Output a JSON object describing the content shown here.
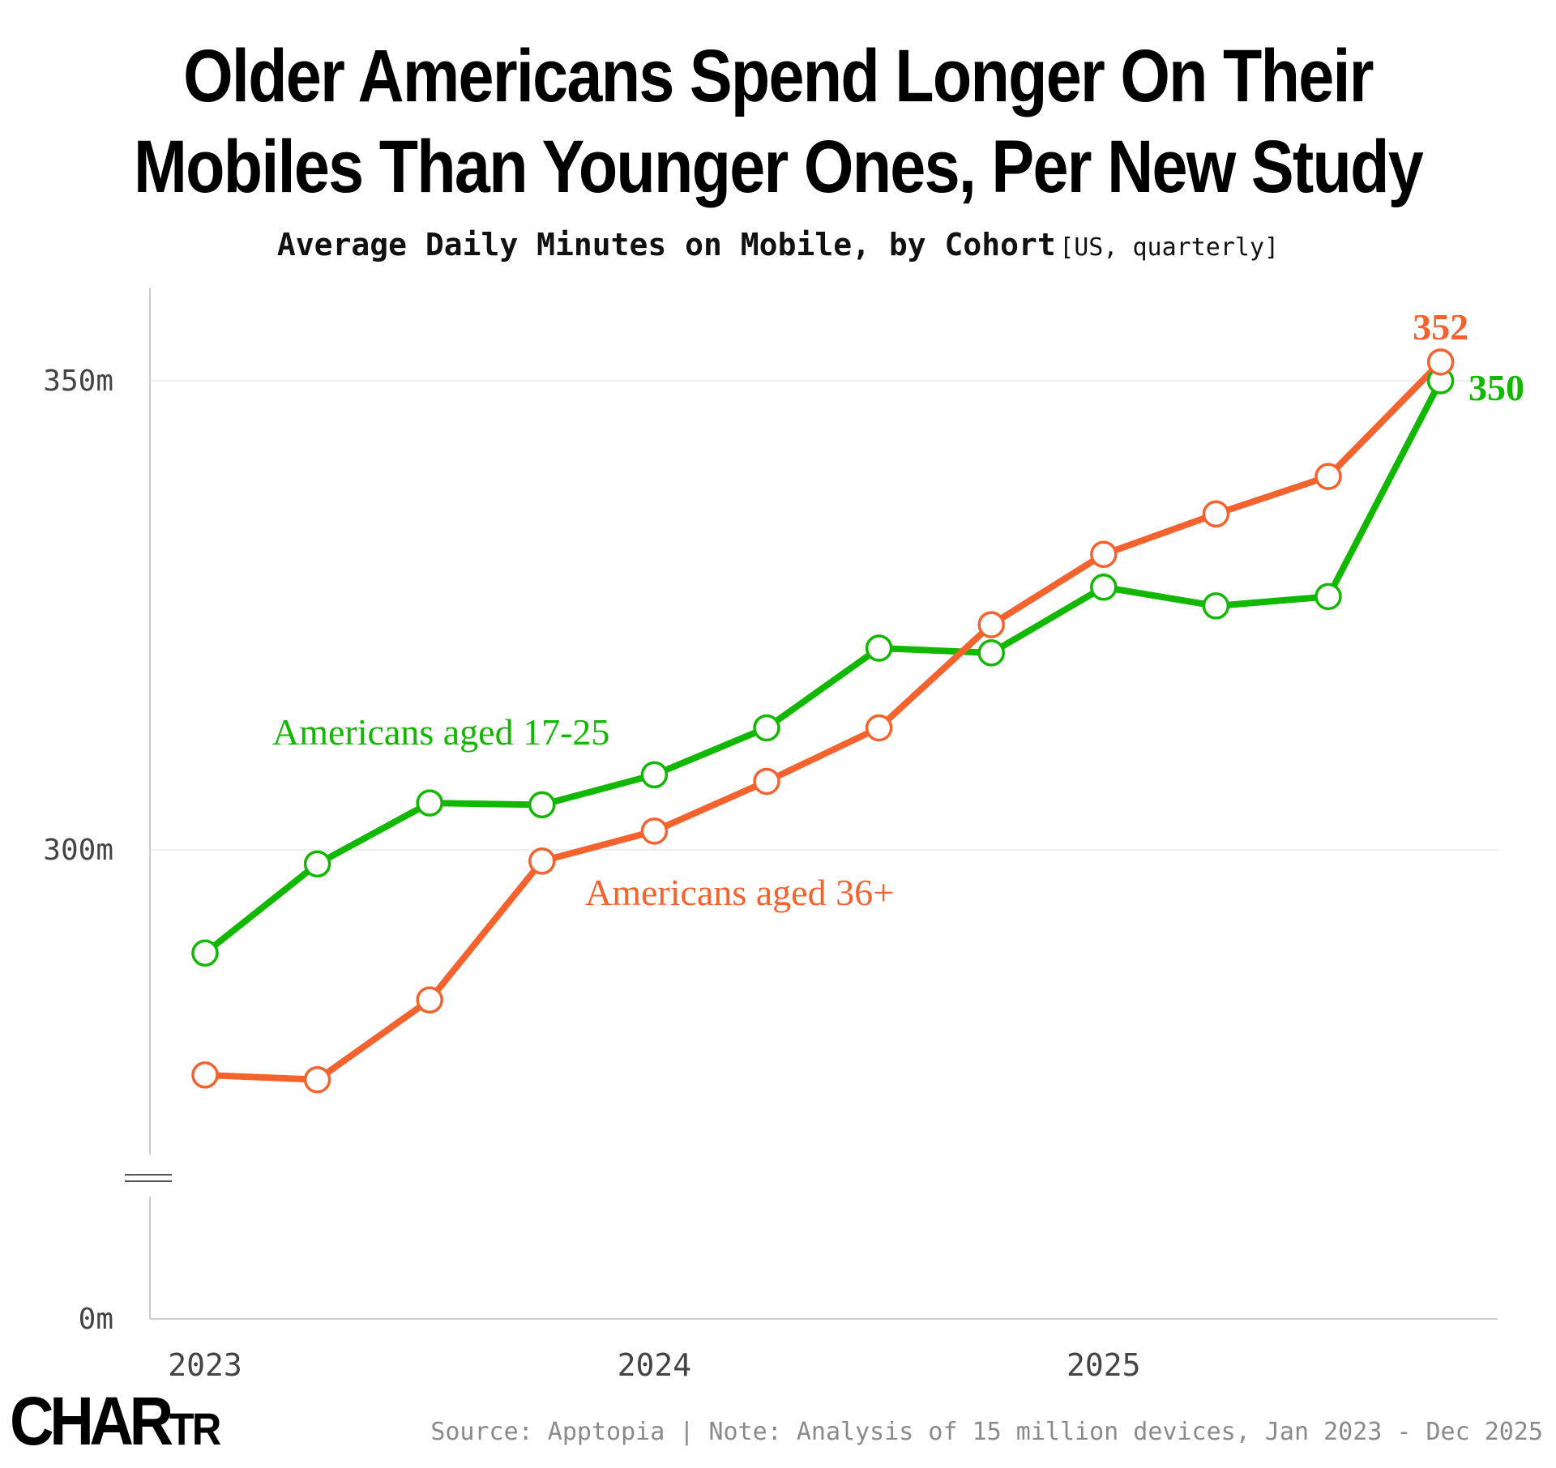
{
  "title_line1": "Older Americans Spend Longer On Their",
  "title_line2": "Mobiles Than Younger Ones, Per New Study",
  "subtitle": "Average Daily Minutes on Mobile, by Cohort",
  "subtitle_meta": "[US, quarterly]",
  "source": "Source: Apptopia | Note: Analysis of 15 million devices, Jan 2023 - Dec 2025",
  "logo": {
    "main": "CHAR",
    "small": "TR"
  },
  "colors": {
    "young": "#12b800",
    "old": "#f4622e",
    "grid": "#eeeeee",
    "axis": "#cccccc",
    "tick": "#444444"
  },
  "chart_data": {
    "type": "line",
    "title": "Older Americans Spend Longer On Their Mobiles Than Younger Ones, Per New Study",
    "subtitle": "Average Daily Minutes on Mobile, by Cohort",
    "x": [
      "2023 Q1",
      "2023 Q2",
      "2023 Q3",
      "2023 Q4",
      "2024 Q1",
      "2024 Q2",
      "2024 Q3",
      "2024 Q4",
      "2025 Q1",
      "2025 Q2",
      "2025 Q3",
      "2025 Q4"
    ],
    "x_tick_labels": [
      {
        "label": "2023",
        "index": 0
      },
      {
        "label": "2024",
        "index": 4
      },
      {
        "label": "2025",
        "index": 8
      }
    ],
    "y_ticks": [
      {
        "label": "0m",
        "value": 0
      },
      {
        "label": "300m",
        "value": 300
      },
      {
        "label": "350m",
        "value": 350
      }
    ],
    "y_axis_broken": true,
    "ylim": [
      0,
      360
    ],
    "series": [
      {
        "name": "Americans aged 17-25",
        "color": "#12b800",
        "values": [
          289,
          298.5,
          305,
          304.8,
          308,
          313,
          321.5,
          321,
          328,
          326,
          327,
          350
        ],
        "end_label": "350"
      },
      {
        "name": "Americans aged 36+",
        "color": "#f4622e",
        "values": [
          276,
          275.5,
          284,
          298.8,
          302,
          307.3,
          313,
          324,
          331.5,
          335.8,
          339.8,
          352
        ],
        "end_label": "352"
      }
    ]
  }
}
